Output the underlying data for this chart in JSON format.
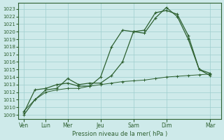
{
  "background_color": "#ceeaea",
  "grid_color": "#9ecece",
  "line_color": "#2d6030",
  "xlabel": "Pression niveau de la mer( hPa )",
  "ylabel_ticks": [
    1009,
    1010,
    1011,
    1012,
    1013,
    1014,
    1015,
    1016,
    1017,
    1018,
    1019,
    1020,
    1021,
    1022,
    1023
  ],
  "ylim": [
    1008.5,
    1023.8
  ],
  "x_tick_labels": [
    "Ven",
    "Lun",
    "Mer",
    "Jeu",
    "Sam",
    "Dim",
    "Mar"
  ],
  "x_tick_positions": [
    0,
    2,
    4,
    7,
    10,
    13,
    17
  ],
  "xlim": [
    -0.5,
    18.0
  ],
  "line1_x": [
    0,
    1,
    2,
    3,
    4,
    5,
    6,
    7,
    8,
    9,
    10,
    11,
    12,
    13,
    14,
    15,
    16,
    17
  ],
  "line1_y": [
    1009.0,
    1011.0,
    1012.3,
    1012.5,
    1013.8,
    1013.0,
    1013.2,
    1013.2,
    1014.2,
    1016.0,
    1020.0,
    1020.2,
    1022.5,
    1022.8,
    1022.3,
    1019.5,
    1015.0,
    1014.5
  ],
  "line2_x": [
    0,
    1,
    2,
    3,
    4,
    5,
    6,
    7,
    8,
    9,
    10,
    11,
    12,
    13,
    14,
    15,
    16,
    17
  ],
  "line2_y": [
    1009.3,
    1012.3,
    1012.5,
    1013.0,
    1013.2,
    1012.8,
    1012.8,
    1014.0,
    1018.0,
    1020.2,
    1020.0,
    1019.8,
    1021.8,
    1023.2,
    1022.0,
    1019.0,
    1015.0,
    1014.2
  ],
  "line3_x": [
    0,
    1,
    2,
    3,
    4,
    5,
    6,
    7,
    8,
    9,
    10,
    11,
    12,
    13,
    14,
    15,
    16,
    17
  ],
  "line3_y": [
    1009.5,
    1011.0,
    1012.0,
    1012.3,
    1012.5,
    1012.5,
    1012.8,
    1013.0,
    1013.2,
    1013.4,
    1013.5,
    1013.6,
    1013.8,
    1014.0,
    1014.1,
    1014.2,
    1014.3,
    1014.4
  ]
}
